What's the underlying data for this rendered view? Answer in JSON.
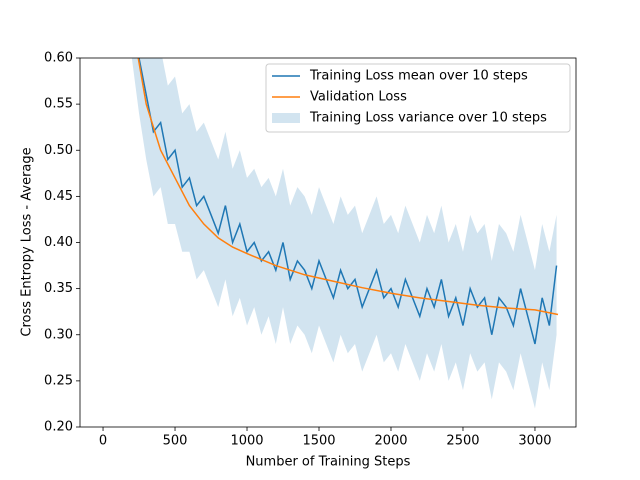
{
  "chart_data": {
    "type": "line",
    "x_label": "Number of Training Steps",
    "y_label": "Cross Entropy Loss - Average",
    "xlim": [
      -160,
      3285
    ],
    "ylim": [
      0.2,
      0.6
    ],
    "xticks": [
      0,
      500,
      1000,
      1500,
      2000,
      2500,
      3000
    ],
    "yticks": [
      {
        "value": 0.2,
        "label": "0.20"
      },
      {
        "value": 0.25,
        "label": "0.25"
      },
      {
        "value": 0.3,
        "label": "0.30"
      },
      {
        "value": 0.35,
        "label": "0.35"
      },
      {
        "value": 0.4,
        "label": "0.40"
      },
      {
        "value": 0.45,
        "label": "0.45"
      },
      {
        "value": 0.5,
        "label": "0.50"
      },
      {
        "value": 0.55,
        "label": "0.55"
      },
      {
        "value": 0.6,
        "label": "0.60"
      }
    ],
    "legend": "upper right",
    "series": [
      {
        "name": "Training Loss mean over 10 steps",
        "color": "#1f77b4",
        "x": [
          200,
          250,
          300,
          350,
          400,
          450,
          500,
          550,
          600,
          650,
          700,
          750,
          800,
          850,
          900,
          950,
          1000,
          1050,
          1100,
          1150,
          1200,
          1250,
          1300,
          1350,
          1400,
          1450,
          1500,
          1550,
          1600,
          1650,
          1700,
          1750,
          1800,
          1850,
          1900,
          1950,
          2000,
          2050,
          2100,
          2150,
          2200,
          2250,
          2300,
          2350,
          2400,
          2450,
          2500,
          2550,
          2600,
          2650,
          2700,
          2750,
          2800,
          2850,
          2900,
          2950,
          3000,
          3050,
          3100,
          3150
        ],
        "values": [
          0.66,
          0.6,
          0.56,
          0.52,
          0.53,
          0.49,
          0.5,
          0.46,
          0.47,
          0.44,
          0.45,
          0.43,
          0.41,
          0.44,
          0.4,
          0.42,
          0.39,
          0.4,
          0.38,
          0.39,
          0.37,
          0.4,
          0.36,
          0.38,
          0.37,
          0.35,
          0.38,
          0.36,
          0.34,
          0.37,
          0.35,
          0.36,
          0.33,
          0.35,
          0.37,
          0.34,
          0.35,
          0.33,
          0.36,
          0.34,
          0.32,
          0.35,
          0.33,
          0.36,
          0.32,
          0.34,
          0.31,
          0.35,
          0.33,
          0.34,
          0.3,
          0.34,
          0.33,
          0.31,
          0.35,
          0.32,
          0.29,
          0.34,
          0.31,
          0.375
        ]
      },
      {
        "name": "Validation Loss",
        "color": "#ff7f0e",
        "x": [
          200,
          300,
          400,
          500,
          600,
          700,
          800,
          900,
          1000,
          1200,
          1400,
          1600,
          1800,
          2000,
          2200,
          2400,
          2600,
          2800,
          3000,
          3160
        ],
        "values": [
          0.64,
          0.55,
          0.5,
          0.47,
          0.44,
          0.42,
          0.405,
          0.395,
          0.388,
          0.375,
          0.365,
          0.358,
          0.351,
          0.345,
          0.34,
          0.336,
          0.332,
          0.329,
          0.327,
          0.322
        ]
      }
    ],
    "band": {
      "name": "Training Loss variance over 10 steps",
      "color": "#1f77b4",
      "x": [
        200,
        250,
        300,
        350,
        400,
        450,
        500,
        550,
        600,
        650,
        700,
        750,
        800,
        850,
        900,
        950,
        1000,
        1050,
        1100,
        1150,
        1200,
        1250,
        1300,
        1350,
        1400,
        1450,
        1500,
        1550,
        1600,
        1650,
        1700,
        1750,
        1800,
        1850,
        1900,
        1950,
        2000,
        2050,
        2100,
        2150,
        2200,
        2250,
        2300,
        2350,
        2400,
        2450,
        2500,
        2550,
        2600,
        2650,
        2700,
        2750,
        2800,
        2850,
        2900,
        2950,
        3000,
        3050,
        3100,
        3150
      ],
      "lower": [
        0.6,
        0.54,
        0.49,
        0.45,
        0.46,
        0.42,
        0.42,
        0.39,
        0.39,
        0.36,
        0.37,
        0.35,
        0.33,
        0.36,
        0.32,
        0.34,
        0.31,
        0.33,
        0.3,
        0.32,
        0.29,
        0.33,
        0.29,
        0.31,
        0.3,
        0.28,
        0.31,
        0.29,
        0.27,
        0.3,
        0.28,
        0.29,
        0.26,
        0.28,
        0.3,
        0.27,
        0.28,
        0.26,
        0.29,
        0.27,
        0.25,
        0.28,
        0.26,
        0.29,
        0.25,
        0.27,
        0.24,
        0.28,
        0.26,
        0.27,
        0.23,
        0.27,
        0.26,
        0.24,
        0.28,
        0.25,
        0.22,
        0.27,
        0.24,
        0.3
      ],
      "upper": [
        0.72,
        0.67,
        0.63,
        0.6,
        0.61,
        0.57,
        0.58,
        0.54,
        0.55,
        0.52,
        0.53,
        0.51,
        0.49,
        0.52,
        0.48,
        0.5,
        0.47,
        0.48,
        0.46,
        0.47,
        0.45,
        0.48,
        0.44,
        0.46,
        0.45,
        0.43,
        0.46,
        0.44,
        0.42,
        0.45,
        0.43,
        0.44,
        0.41,
        0.43,
        0.45,
        0.42,
        0.43,
        0.41,
        0.44,
        0.42,
        0.4,
        0.43,
        0.41,
        0.44,
        0.4,
        0.42,
        0.39,
        0.43,
        0.41,
        0.42,
        0.38,
        0.42,
        0.41,
        0.39,
        0.43,
        0.4,
        0.37,
        0.42,
        0.39,
        0.43
      ]
    }
  }
}
